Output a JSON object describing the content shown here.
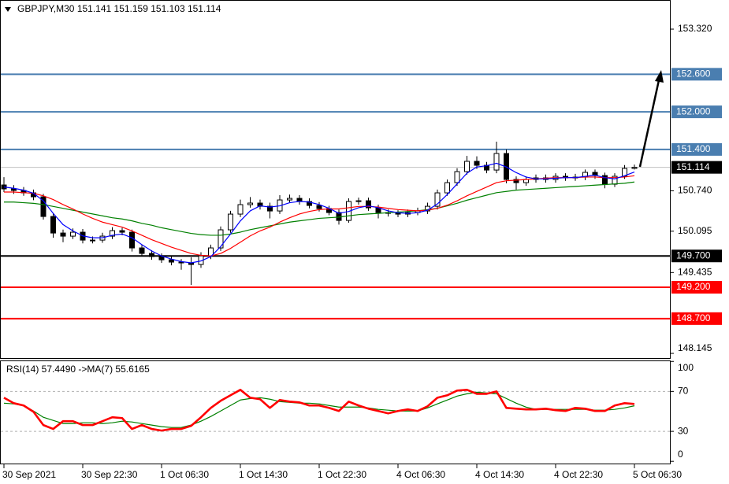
{
  "chart_data": [
    {
      "type": "candlestick",
      "title": "GBPJPY,M30 151.141 151.159 151.103 151.114",
      "categories": [
        "30 Sep 2021",
        null,
        null,
        null,
        null,
        null,
        null,
        null,
        "30 Sep 22:30",
        null,
        null,
        null,
        null,
        null,
        null,
        null,
        "1 Oct 06:30",
        null,
        null,
        null,
        null,
        null,
        null,
        null,
        "1 Oct 14:30",
        null,
        null,
        null,
        null,
        null,
        null,
        null,
        "1 Oct 22:30",
        null,
        null,
        null,
        null,
        null,
        null,
        null,
        "4 Oct 06:30",
        null,
        null,
        null,
        null,
        null,
        null,
        null,
        "4 Oct 14:30",
        null,
        null,
        null,
        null,
        null,
        null,
        null,
        "4 Oct 22:30",
        null,
        null,
        null,
        null,
        null,
        null,
        null,
        "5 Oct 06:30"
      ],
      "open": [
        150.833,
        150.77,
        150.745,
        150.707,
        150.644,
        150.33,
        150.066,
        150.016,
        150.079,
        149.953,
        149.953,
        150.016,
        150.104,
        150.079,
        149.828,
        149.74,
        149.69,
        149.639,
        149.602,
        149.589,
        149.564,
        149.702,
        149.828,
        150.117,
        150.368,
        150.519,
        150.544,
        150.493,
        150.418,
        150.594,
        150.619,
        150.569,
        150.506,
        150.456,
        150.393,
        150.267,
        150.569,
        150.581,
        150.468,
        150.393,
        150.38,
        150.368,
        150.393,
        150.418,
        150.493,
        150.707,
        150.87,
        151.046,
        151.21,
        151.147,
        151.071,
        151.335,
        150.921,
        150.87,
        150.921,
        150.946,
        150.921,
        150.971,
        150.946,
        150.958,
        151.034,
        150.983,
        150.845,
        150.971,
        151.097
      ],
      "high": [
        150.958,
        150.83,
        150.8,
        150.76,
        150.69,
        150.38,
        150.12,
        150.14,
        150.13,
        150.01,
        150.07,
        150.16,
        150.15,
        150.12,
        149.88,
        149.79,
        149.74,
        149.69,
        149.65,
        149.68,
        149.76,
        149.88,
        150.17,
        150.42,
        150.6,
        150.64,
        150.6,
        150.55,
        150.67,
        150.68,
        150.67,
        150.62,
        150.56,
        150.5,
        150.44,
        150.62,
        150.63,
        150.63,
        150.52,
        150.44,
        150.43,
        150.44,
        150.47,
        150.55,
        150.76,
        150.92,
        151.1,
        151.298,
        151.29,
        151.2,
        151.524,
        151.4,
        150.97,
        150.97,
        151.0,
        151.0,
        151.02,
        151.02,
        151.01,
        151.08,
        151.08,
        151.03,
        151.02,
        151.15,
        151.159
      ],
      "low": [
        150.72,
        150.69,
        150.66,
        150.59,
        150.28,
        149.99,
        149.92,
        149.97,
        149.9,
        149.9,
        149.91,
        149.97,
        150.03,
        149.77,
        149.69,
        149.64,
        149.59,
        149.55,
        149.48,
        149.237,
        149.51,
        149.65,
        149.78,
        150.07,
        150.32,
        150.47,
        150.44,
        150.3,
        150.37,
        150.55,
        150.52,
        150.46,
        150.41,
        150.35,
        150.2,
        150.23,
        150.52,
        150.42,
        150.3,
        150.33,
        150.32,
        150.32,
        150.35,
        150.37,
        150.44,
        150.66,
        150.82,
        151.0,
        151.09,
        151.02,
        151.02,
        150.86,
        150.76,
        150.82,
        150.87,
        150.87,
        150.87,
        150.9,
        150.9,
        150.91,
        150.93,
        150.78,
        150.8,
        150.93,
        151.08
      ],
      "close": [
        150.77,
        150.745,
        150.707,
        150.644,
        150.33,
        150.066,
        150.016,
        150.079,
        149.953,
        149.953,
        150.016,
        150.104,
        150.079,
        149.828,
        149.74,
        149.69,
        149.639,
        149.602,
        149.589,
        149.564,
        149.702,
        149.828,
        150.117,
        150.368,
        150.519,
        150.544,
        150.493,
        150.418,
        150.594,
        150.619,
        150.569,
        150.506,
        150.456,
        150.393,
        150.267,
        150.569,
        150.581,
        150.468,
        150.393,
        150.38,
        150.368,
        150.393,
        150.418,
        150.493,
        150.707,
        150.87,
        151.046,
        151.21,
        151.147,
        151.071,
        151.335,
        150.921,
        150.87,
        150.921,
        150.946,
        150.921,
        150.971,
        150.946,
        150.958,
        151.034,
        150.983,
        150.845,
        150.971,
        151.097,
        151.114
      ],
      "series": [
        {
          "color": "#008000",
          "width": 1.2,
          "values": [
            150.56,
            150.56,
            150.55,
            150.54,
            150.52,
            150.49,
            150.46,
            150.43,
            150.4,
            150.37,
            150.34,
            150.31,
            150.29,
            150.26,
            150.22,
            150.19,
            150.15,
            150.12,
            150.09,
            150.06,
            150.04,
            150.03,
            150.03,
            150.05,
            150.08,
            150.12,
            150.15,
            150.18,
            150.21,
            150.24,
            150.26,
            150.28,
            150.3,
            150.31,
            150.32,
            150.34,
            150.36,
            150.37,
            150.38,
            150.39,
            150.4,
            150.41,
            150.42,
            150.44,
            150.46,
            150.5,
            150.54,
            150.59,
            150.63,
            150.67,
            150.71,
            150.73,
            150.75,
            150.76,
            150.77,
            150.78,
            150.79,
            150.8,
            150.81,
            150.82,
            150.83,
            150.84,
            150.85,
            150.86,
            150.88
          ]
        },
        {
          "color": "#ff0000",
          "width": 1.2,
          "values": [
            150.72,
            150.72,
            150.71,
            150.7,
            150.66,
            150.6,
            150.52,
            150.45,
            150.37,
            150.3,
            150.24,
            150.2,
            150.16,
            150.1,
            150.03,
            149.96,
            149.9,
            149.84,
            149.79,
            149.74,
            149.71,
            149.7,
            149.74,
            149.82,
            149.92,
            150.02,
            150.1,
            150.16,
            150.24,
            150.31,
            150.37,
            150.41,
            150.44,
            150.45,
            150.45,
            150.47,
            150.49,
            150.49,
            150.48,
            150.46,
            150.44,
            150.43,
            150.42,
            150.43,
            150.46,
            150.51,
            150.58,
            150.66,
            150.73,
            150.8,
            150.87,
            150.9,
            150.91,
            150.92,
            150.93,
            150.94,
            150.95,
            150.95,
            150.95,
            150.96,
            150.96,
            150.95,
            150.95,
            150.96,
            150.98
          ]
        },
        {
          "color": "#0000ff",
          "width": 1.2,
          "values": [
            150.8,
            150.78,
            150.75,
            150.7,
            150.58,
            150.38,
            150.2,
            150.1,
            150.02,
            149.99,
            149.99,
            150.03,
            150.05,
            149.99,
            149.88,
            149.78,
            149.7,
            149.65,
            149.61,
            149.59,
            149.62,
            149.69,
            149.85,
            150.05,
            150.26,
            150.42,
            150.5,
            150.48,
            150.5,
            150.55,
            150.57,
            150.56,
            150.52,
            150.46,
            150.38,
            150.41,
            150.47,
            150.5,
            150.47,
            150.42,
            150.39,
            150.38,
            150.39,
            150.43,
            150.53,
            150.68,
            150.85,
            151.02,
            151.12,
            151.14,
            151.18,
            151.12,
            151.03,
            150.96,
            150.93,
            150.93,
            150.94,
            150.95,
            150.95,
            150.97,
            150.99,
            150.95,
            150.93,
            150.98,
            151.04
          ]
        }
      ],
      "ylim": [
        148.07,
        153.785
      ],
      "yticks": [
        {
          "value": 153.32,
          "label": "153.320"
        },
        {
          "value": 150.74,
          "label": "150.740"
        },
        {
          "value": 150.095,
          "label": "150.095"
        },
        {
          "value": 149.435,
          "label": "149.435"
        },
        {
          "value": 148.145,
          "label": "148.145"
        }
      ],
      "levels": [
        {
          "value": 152.6,
          "label": "152.600",
          "color": "#4a7eb0"
        },
        {
          "value": 152.0,
          "label": "152.000",
          "color": "#4a7eb0"
        },
        {
          "value": 151.4,
          "label": "151.400",
          "color": "#4a7eb0"
        },
        {
          "value": 149.7,
          "label": "149.700",
          "color": "#000000"
        },
        {
          "value": 149.2,
          "label": "149.200",
          "color": "#ff0000"
        },
        {
          "value": 148.7,
          "label": "148.700",
          "color": "#ff0000"
        }
      ],
      "last_price": {
        "value": 151.114,
        "label": "151.114"
      }
    },
    {
      "type": "line",
      "title": "RSI(14) 57.4490 ->MA(7) 55.6165",
      "series": [
        {
          "color": "#008000",
          "width": 1.2,
          "values": [
            58.2,
            57.5,
            55.9,
            50.4,
            44.1,
            41.0,
            37.8,
            37.8,
            38.6,
            38.6,
            37.8,
            38.6,
            40.2,
            39.4,
            37.8,
            36.3,
            34.7,
            33.9,
            33.9,
            36.3,
            40.2,
            44.9,
            50.4,
            55.9,
            61.4,
            62.9,
            63.7,
            62.2,
            59.8,
            59.0,
            58.2,
            58.2,
            57.5,
            55.9,
            54.3,
            54.3,
            54.3,
            53.5,
            52.0,
            51.2,
            50.4,
            50.4,
            50.4,
            53.5,
            57.5,
            61.4,
            65.3,
            67.6,
            69.2,
            68.4,
            67.6,
            62.9,
            58.2,
            54.3,
            52.0,
            52.0,
            52.0,
            52.0,
            52.0,
            52.0,
            51.2,
            51.2,
            52.0,
            53.5,
            55.6
          ]
        },
        {
          "color": "#ff0000",
          "width": 2.6,
          "values": [
            63.7,
            58.2,
            55.9,
            49.6,
            36.3,
            32.4,
            40.2,
            40.2,
            36.3,
            36.3,
            40.2,
            44.1,
            43.3,
            32.4,
            36.3,
            32.4,
            30.8,
            32.4,
            32.4,
            35.5,
            44.1,
            53.5,
            60.6,
            66.1,
            71.6,
            63.7,
            62.2,
            53.5,
            61.4,
            59.8,
            59.0,
            55.9,
            55.9,
            53.5,
            50.4,
            59.8,
            55.9,
            52.7,
            50.4,
            48.0,
            50.4,
            52.0,
            50.4,
            55.1,
            63.7,
            66.1,
            70.8,
            71.6,
            67.6,
            67.6,
            70.0,
            53.5,
            52.7,
            52.0,
            52.0,
            52.7,
            51.2,
            50.4,
            53.5,
            52.7,
            50.4,
            50.4,
            55.9,
            58.2,
            57.4
          ]
        }
      ],
      "ylim": [
        -3,
        101
      ],
      "yticks": [
        0,
        30,
        70,
        100
      ],
      "levels": [
        30,
        70
      ]
    }
  ]
}
